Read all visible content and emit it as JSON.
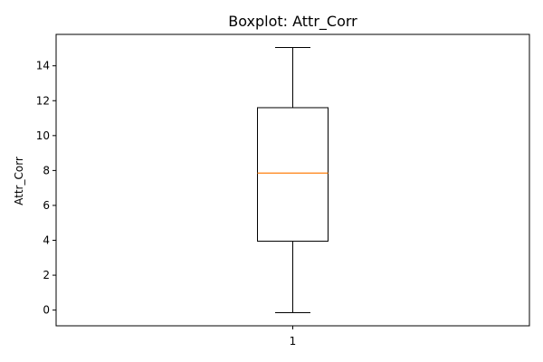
{
  "chart_data": {
    "type": "boxplot",
    "title": "Boxplot: Attr_Corr",
    "xlabel": "",
    "ylabel": "Attr_Corr",
    "categories": [
      "1"
    ],
    "boxes": [
      {
        "whisker_low": -0.15,
        "q1": 3.95,
        "median": 7.85,
        "q3": 11.6,
        "whisker_high": 15.05
      }
    ],
    "ylim": [
      -0.9,
      15.8
    ],
    "yticks": [
      0,
      2,
      4,
      6,
      8,
      10,
      12,
      14
    ],
    "ytick_labels": [
      "0",
      "2",
      "4",
      "6",
      "8",
      "10",
      "12",
      "14"
    ],
    "grid": false,
    "colors": {
      "box": "#000000",
      "median": "#ff7f0e"
    }
  }
}
